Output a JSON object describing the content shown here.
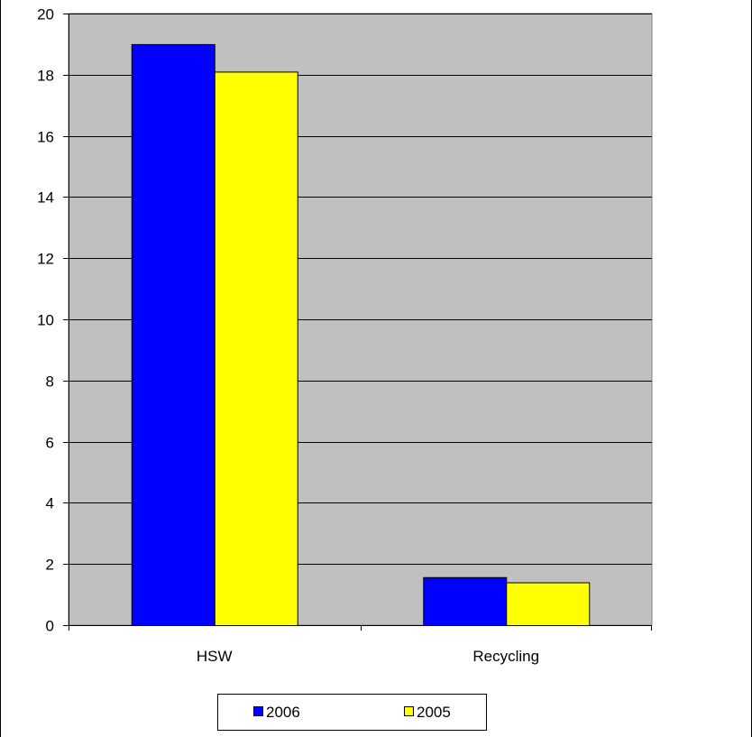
{
  "chart_data": {
    "type": "bar",
    "categories": [
      "HSW",
      "Recycling"
    ],
    "series": [
      {
        "name": "2006",
        "values": [
          19.0,
          1.57
        ],
        "color": "#0000FF"
      },
      {
        "name": "2005",
        "values": [
          18.1,
          1.4
        ],
        "color": "#FFFF00"
      }
    ],
    "y_ticks": [
      "0",
      "2",
      "4",
      "6",
      "8",
      "10",
      "12",
      "14",
      "16",
      "18",
      "20"
    ],
    "ylim": [
      0,
      20
    ],
    "grid": true,
    "plot_background": "#C0C0C0",
    "legend_position": "bottom-center",
    "title": "",
    "xlabel": "",
    "ylabel": ""
  }
}
